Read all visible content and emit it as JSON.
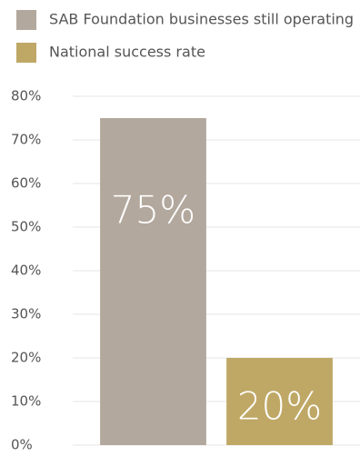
{
  "chart_data": {
    "type": "bar",
    "categories": [
      null
    ],
    "series": [
      {
        "name": "SAB Foundation businesses still operating",
        "color": "#b3a89d",
        "values": [
          75
        ],
        "value_labels": [
          "75%"
        ]
      },
      {
        "name": "National success rate",
        "color": "#bfa866",
        "values": [
          20
        ],
        "value_labels": [
          "20%"
        ]
      }
    ],
    "ylim": [
      0,
      80
    ],
    "yticks": [
      {
        "value": 0,
        "label": "0%"
      },
      {
        "value": 10,
        "label": "10%"
      },
      {
        "value": 20,
        "label": "20%"
      },
      {
        "value": 30,
        "label": "30%"
      },
      {
        "value": 40,
        "label": "40%"
      },
      {
        "value": 50,
        "label": "50%"
      },
      {
        "value": 60,
        "label": "60%"
      },
      {
        "value": 70,
        "label": "70%"
      },
      {
        "value": 80,
        "label": "80%"
      }
    ],
    "grid": true
  }
}
